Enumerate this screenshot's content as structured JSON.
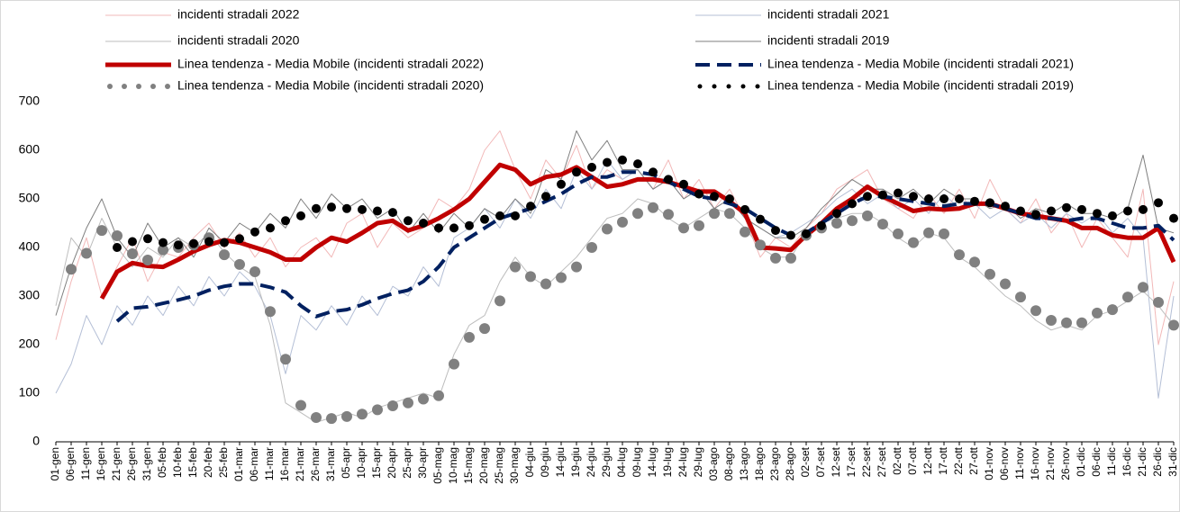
{
  "chart_data": {
    "type": "line",
    "categories": [
      "01-gen",
      "06-gen",
      "11-gen",
      "16-gen",
      "21-gen",
      "26-gen",
      "31-gen",
      "05-feb",
      "10-feb",
      "15-feb",
      "20-feb",
      "25-feb",
      "01-mar",
      "06-mar",
      "11-mar",
      "16-mar",
      "21-mar",
      "26-mar",
      "31-mar",
      "05-apr",
      "10-apr",
      "15-apr",
      "20-apr",
      "25-apr",
      "30-apr",
      "05-mag",
      "10-mag",
      "15-mag",
      "20-mag",
      "25-mag",
      "30-mag",
      "04-giu",
      "09-giu",
      "14-giu",
      "19-giu",
      "24-giu",
      "29-giu",
      "04-lug",
      "09-lug",
      "14-lug",
      "19-lug",
      "24-lug",
      "29-lug",
      "03-ago",
      "08-ago",
      "13-ago",
      "18-ago",
      "23-ago",
      "28-ago",
      "02-set",
      "07-set",
      "12-set",
      "17-set",
      "22-set",
      "27-set",
      "02-ott",
      "07-ott",
      "12-ott",
      "17-ott",
      "22-ott",
      "27-ott",
      "01-nov",
      "06-nov",
      "11-nov",
      "16-nov",
      "21-nov",
      "26-nov",
      "01-dic",
      "06-dic",
      "11-dic",
      "16-dic",
      "21-dic",
      "26-dic",
      "31-dic"
    ],
    "ylim": [
      0,
      700
    ],
    "yticks": [
      0,
      100,
      200,
      300,
      400,
      500,
      600,
      700
    ],
    "grid": false,
    "series": [
      {
        "name": "incidenti stradali 2022",
        "color": "#f2b8b8",
        "style": "line",
        "width": 1,
        "values": [
          210,
          330,
          420,
          300,
          360,
          420,
          330,
          390,
          380,
          420,
          450,
          400,
          430,
          380,
          420,
          360,
          400,
          420,
          380,
          450,
          470,
          400,
          450,
          420,
          440,
          500,
          480,
          520,
          600,
          640,
          560,
          500,
          580,
          540,
          610,
          520,
          560,
          540,
          560,
          520,
          580,
          500,
          540,
          480,
          520,
          460,
          380,
          420,
          400,
          440,
          470,
          520,
          540,
          560,
          500,
          480,
          460,
          510,
          470,
          520,
          460,
          540,
          480,
          450,
          500,
          430,
          470,
          400,
          460,
          420,
          380,
          520,
          200,
          330
        ]
      },
      {
        "name": "incidenti stradali 2021",
        "color": "#b4bfd6",
        "style": "line",
        "width": 1,
        "values": [
          100,
          160,
          260,
          200,
          280,
          240,
          300,
          260,
          320,
          280,
          340,
          300,
          350,
          320,
          260,
          140,
          260,
          230,
          280,
          240,
          300,
          260,
          320,
          300,
          360,
          320,
          420,
          440,
          480,
          440,
          500,
          460,
          520,
          480,
          560,
          520,
          580,
          540,
          560,
          520,
          540,
          500,
          520,
          480,
          500,
          460,
          440,
          420,
          430,
          450,
          470,
          500,
          520,
          490,
          510,
          480,
          500,
          470,
          510,
          480,
          490,
          460,
          480,
          450,
          470,
          440,
          470,
          450,
          470,
          430,
          460,
          420,
          90,
          300
        ]
      },
      {
        "name": "incidenti stradali 2020",
        "color": "#bdbdbd",
        "style": "line",
        "width": 1,
        "values": [
          280,
          420,
          380,
          460,
          400,
          360,
          400,
          380,
          420,
          400,
          430,
          390,
          360,
          340,
          240,
          80,
          60,
          40,
          50,
          60,
          50,
          70,
          80,
          90,
          100,
          90,
          180,
          240,
          260,
          330,
          380,
          340,
          320,
          350,
          380,
          420,
          460,
          470,
          500,
          490,
          460,
          440,
          460,
          480,
          470,
          440,
          400,
          380,
          380,
          430,
          450,
          460,
          470,
          470,
          450,
          420,
          400,
          430,
          420,
          380,
          360,
          330,
          300,
          280,
          250,
          230,
          240,
          230,
          260,
          270,
          290,
          310,
          280,
          240
        ]
      },
      {
        "name": "incidenti  stradali 2019",
        "color": "#7f7f7f",
        "style": "line",
        "width": 1,
        "values": [
          260,
          360,
          440,
          500,
          420,
          380,
          450,
          400,
          420,
          380,
          440,
          410,
          450,
          430,
          470,
          440,
          500,
          460,
          510,
          480,
          500,
          460,
          480,
          430,
          470,
          430,
          470,
          440,
          480,
          460,
          500,
          470,
          560,
          540,
          640,
          580,
          620,
          560,
          560,
          520,
          540,
          500,
          520,
          480,
          500,
          460,
          440,
          420,
          420,
          440,
          480,
          510,
          540,
          520,
          520,
          500,
          520,
          490,
          520,
          500,
          500,
          480,
          490,
          460,
          480,
          470,
          490,
          470,
          470,
          460,
          480,
          590,
          440,
          430
        ]
      },
      {
        "name": "Linea tendenza - Media Mobile (incidenti stradali 2022)",
        "color": "#c00000",
        "style": "line",
        "width": 5,
        "values": [
          null,
          null,
          null,
          295,
          350,
          368,
          362,
          360,
          375,
          392,
          405,
          415,
          410,
          400,
          390,
          375,
          375,
          400,
          420,
          412,
          430,
          450,
          455,
          435,
          445,
          460,
          478,
          500,
          535,
          570,
          560,
          530,
          545,
          550,
          565,
          545,
          525,
          530,
          540,
          540,
          535,
          525,
          515,
          515,
          495,
          470,
          400,
          398,
          395,
          425,
          450,
          480,
          500,
          525,
          505,
          490,
          475,
          480,
          478,
          480,
          490,
          490,
          480,
          470,
          465,
          460,
          455,
          440,
          440,
          425,
          420,
          420,
          440,
          370
        ]
      },
      {
        "name": "Linea tendenza - Media Mobile (incidenti stradali 2021)",
        "color": "#002060",
        "style": "dash",
        "width": 4,
        "values": [
          null,
          null,
          null,
          null,
          248,
          275,
          278,
          285,
          292,
          300,
          312,
          320,
          325,
          325,
          318,
          308,
          280,
          258,
          268,
          272,
          282,
          295,
          305,
          312,
          330,
          360,
          400,
          420,
          440,
          460,
          470,
          480,
          495,
          510,
          530,
          545,
          545,
          555,
          555,
          550,
          535,
          520,
          505,
          500,
          490,
          480,
          460,
          440,
          425,
          430,
          450,
          470,
          490,
          505,
          505,
          500,
          495,
          490,
          485,
          490,
          490,
          490,
          480,
          470,
          460,
          460,
          455,
          460,
          460,
          450,
          440,
          440,
          445,
          415
        ]
      },
      {
        "name": "Linea tendenza - Media Mobile (incidenti stradali 2020)",
        "color": "#808080",
        "style": "dots",
        "width": 6,
        "values": [
          null,
          355,
          388,
          435,
          424,
          387,
          374,
          395,
          400,
          405,
          420,
          385,
          365,
          350,
          268,
          170,
          75,
          50,
          48,
          52,
          57,
          66,
          74,
          80,
          88,
          95,
          160,
          215,
          233,
          290,
          360,
          340,
          325,
          338,
          360,
          400,
          438,
          452,
          470,
          482,
          468,
          440,
          445,
          470,
          470,
          432,
          405,
          378,
          378,
          425,
          440,
          450,
          455,
          465,
          448,
          428,
          410,
          430,
          428,
          385,
          370,
          345,
          325,
          298,
          270,
          250,
          245,
          245,
          265,
          272,
          298,
          318,
          287,
          240
        ]
      },
      {
        "name": "Linea tendenza - Media Mobile (incidenti stradali 2019)",
        "color": "#000000",
        "style": "dots",
        "width": 5,
        "values": [
          null,
          null,
          null,
          null,
          400,
          412,
          418,
          410,
          405,
          408,
          412,
          410,
          418,
          432,
          440,
          455,
          465,
          480,
          483,
          480,
          478,
          475,
          472,
          455,
          450,
          440,
          440,
          445,
          458,
          465,
          465,
          485,
          505,
          530,
          555,
          565,
          575,
          580,
          572,
          555,
          540,
          530,
          510,
          505,
          500,
          478,
          458,
          435,
          425,
          428,
          445,
          470,
          490,
          505,
          508,
          512,
          505,
          500,
          500,
          500,
          495,
          492,
          485,
          475,
          468,
          475,
          482,
          478,
          470,
          465,
          475,
          478,
          492,
          460
        ]
      }
    ]
  }
}
